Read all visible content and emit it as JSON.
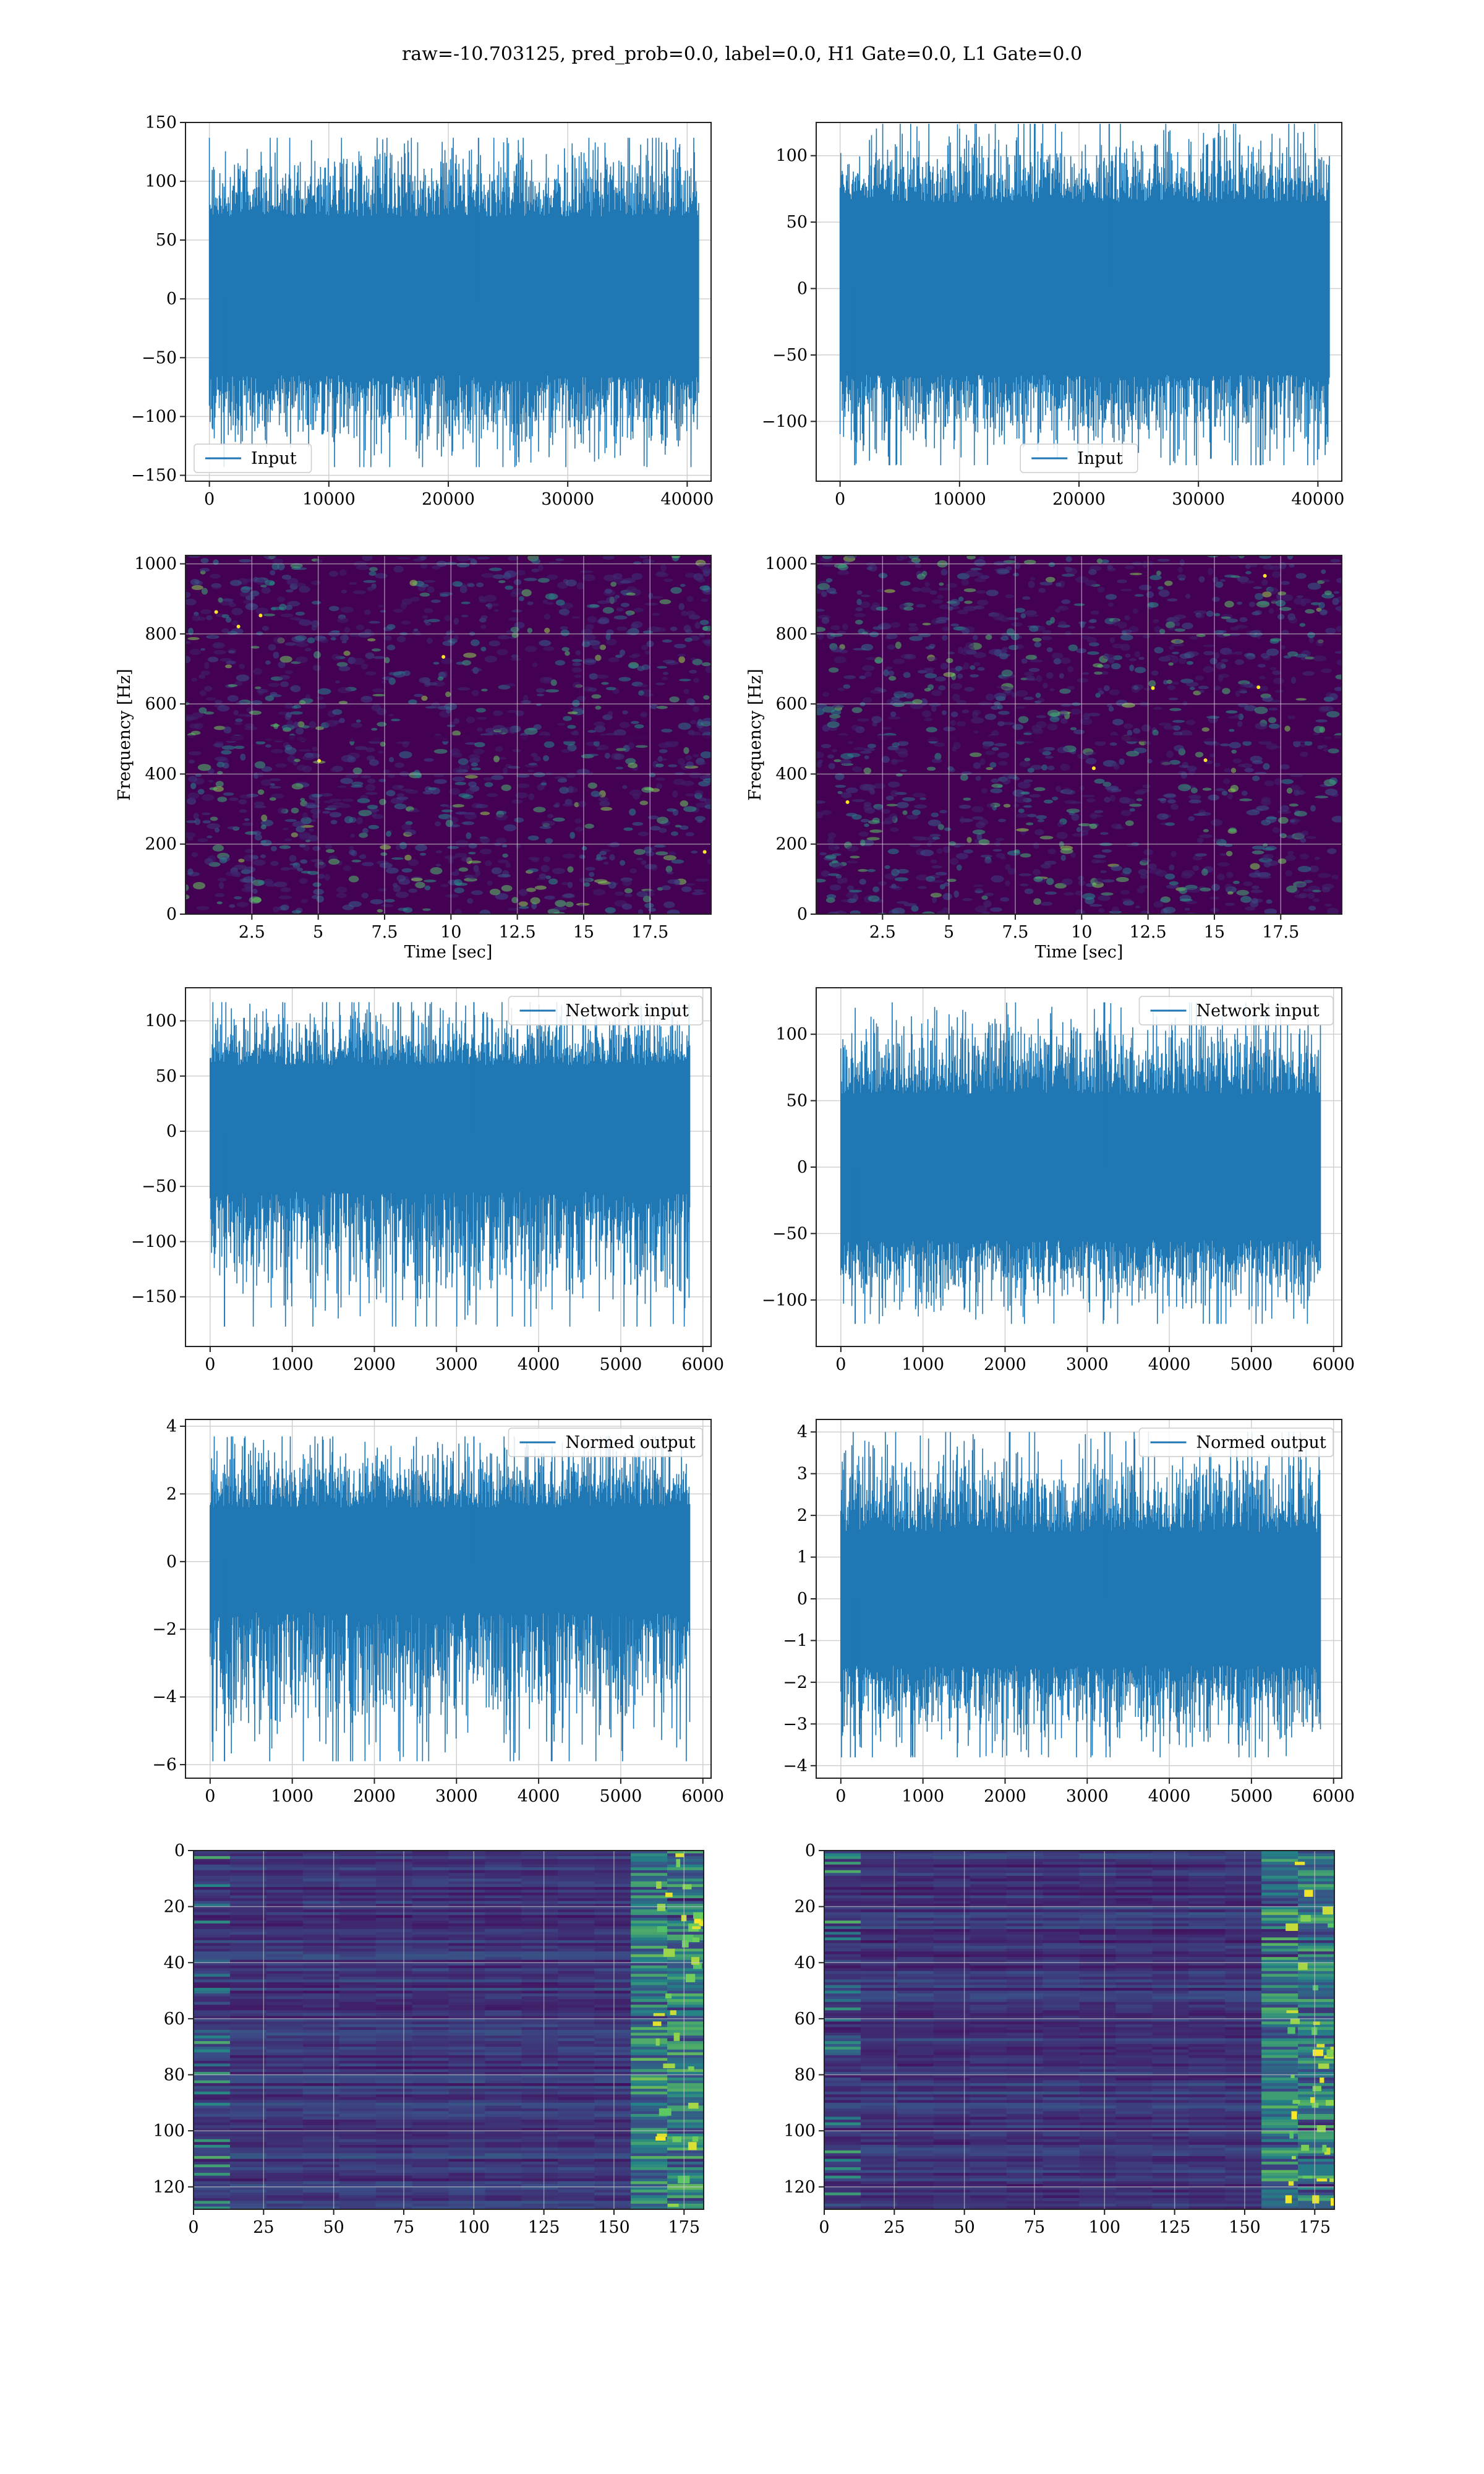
{
  "suptitle": "raw=-10.703125, pred_prob=0.0, label=0.0, H1 Gate=0.0, L1 Gate=0.0",
  "colors": {
    "line": "#1f77b4",
    "grid": "#d0d0d0",
    "viridis_dark": "#440154",
    "viridis_blue": "#3b528b",
    "viridis_teal": "#21908d",
    "viridis_green": "#5dc963",
    "viridis_yellow": "#fde725"
  },
  "chart_data": [
    {
      "id": "input-left",
      "type": "line",
      "legend": "Input",
      "legend_loc": "lower left",
      "xlim": [
        -2000,
        42000
      ],
      "ylim": [
        -155,
        150
      ],
      "xticks": [
        0,
        10000,
        20000,
        30000,
        40000
      ],
      "yticks": [
        -150,
        -100,
        -50,
        0,
        50,
        100,
        150
      ],
      "series": [
        {
          "x_range": [
            0,
            40960
          ],
          "band": [
            -65,
            70
          ],
          "min": -143,
          "max": 137,
          "noise": "gaussian"
        }
      ]
    },
    {
      "id": "input-right",
      "type": "line",
      "legend": "Input",
      "legend_loc": "lower center",
      "xlim": [
        -2000,
        42000
      ],
      "ylim": [
        -145,
        125
      ],
      "xticks": [
        0,
        10000,
        20000,
        30000,
        40000
      ],
      "yticks": [
        -100,
        -50,
        0,
        50,
        100
      ],
      "series": [
        {
          "x_range": [
            0,
            40960
          ],
          "band": [
            -65,
            65
          ],
          "min": -133,
          "max": 124,
          "noise": "gaussian"
        }
      ]
    },
    {
      "id": "spec-left",
      "type": "heatmap",
      "xlim": [
        0,
        19.8
      ],
      "ylim": [
        0,
        1024
      ],
      "xticks": [
        2.5,
        5.0,
        7.5,
        10.0,
        12.5,
        15.0,
        17.5
      ],
      "yticks": [
        0,
        200,
        400,
        600,
        800,
        1000
      ],
      "xlabel": "Time [sec]",
      "ylabel": "Frequency [Hz]",
      "colormap": "viridis"
    },
    {
      "id": "spec-right",
      "type": "heatmap",
      "xlim": [
        0,
        19.8
      ],
      "ylim": [
        0,
        1024
      ],
      "xticks": [
        2.5,
        5.0,
        7.5,
        10.0,
        12.5,
        15.0,
        17.5
      ],
      "yticks": [
        0,
        200,
        400,
        600,
        800,
        1000
      ],
      "xlabel": "Time [sec]",
      "ylabel": "Frequency [Hz]",
      "colormap": "viridis"
    },
    {
      "id": "network-left",
      "type": "line",
      "legend": "Network input",
      "legend_loc": "upper right",
      "xlim": [
        -300,
        6100
      ],
      "ylim": [
        -195,
        130
      ],
      "xticks": [
        0,
        1000,
        2000,
        3000,
        4000,
        5000,
        6000
      ],
      "yticks": [
        -150,
        -100,
        -50,
        0,
        50,
        100
      ],
      "series": [
        {
          "x_range": [
            0,
            5840
          ],
          "band": [
            -55,
            60
          ],
          "min": -177,
          "max": 117,
          "noise": "gaussian"
        }
      ]
    },
    {
      "id": "network-right",
      "type": "line",
      "legend": "Network input",
      "legend_loc": "upper right",
      "xlim": [
        -300,
        6100
      ],
      "ylim": [
        -135,
        135
      ],
      "xticks": [
        0,
        1000,
        2000,
        3000,
        4000,
        5000,
        6000
      ],
      "yticks": [
        -100,
        -50,
        0,
        50,
        100
      ],
      "series": [
        {
          "x_range": [
            0,
            5840
          ],
          "band": [
            -55,
            55
          ],
          "min": -118,
          "max": 124,
          "noise": "gaussian"
        }
      ]
    },
    {
      "id": "normed-left",
      "type": "line",
      "legend": "Normed output",
      "legend_loc": "upper right",
      "xlim": [
        -300,
        6100
      ],
      "ylim": [
        -6.4,
        4.2
      ],
      "xticks": [
        0,
        1000,
        2000,
        3000,
        4000,
        5000,
        6000
      ],
      "yticks": [
        -6,
        -4,
        -2,
        0,
        2,
        4
      ],
      "series": [
        {
          "x_range": [
            0,
            5840
          ],
          "band": [
            -1.5,
            1.6
          ],
          "min": -5.9,
          "max": 3.7,
          "noise": "gaussian"
        }
      ]
    },
    {
      "id": "normed-right",
      "type": "line",
      "legend": "Normed output",
      "legend_loc": "upper right",
      "xlim": [
        -300,
        6100
      ],
      "ylim": [
        -4.3,
        4.3
      ],
      "xticks": [
        0,
        1000,
        2000,
        3000,
        4000,
        5000,
        6000
      ],
      "yticks": [
        -4,
        -3,
        -2,
        -1,
        0,
        1,
        2,
        3,
        4
      ],
      "series": [
        {
          "x_range": [
            0,
            5840
          ],
          "band": [
            -1.6,
            1.6
          ],
          "min": -3.8,
          "max": 4.0,
          "noise": "gaussian"
        }
      ]
    },
    {
      "id": "features-left",
      "type": "heatmap",
      "xlim": [
        0,
        182
      ],
      "ylim": [
        128,
        0
      ],
      "xticks": [
        0,
        25,
        50,
        75,
        100,
        125,
        150,
        175
      ],
      "yticks": [
        0,
        20,
        40,
        60,
        80,
        100,
        120
      ],
      "colormap": "viridis",
      "rows": 128,
      "cols": 182
    },
    {
      "id": "features-right",
      "type": "heatmap",
      "xlim": [
        0,
        182
      ],
      "ylim": [
        128,
        0
      ],
      "xticks": [
        0,
        25,
        50,
        75,
        100,
        125,
        150,
        175
      ],
      "yticks": [
        0,
        20,
        40,
        60,
        80,
        100,
        120
      ],
      "colormap": "viridis",
      "rows": 128,
      "cols": 182
    }
  ]
}
